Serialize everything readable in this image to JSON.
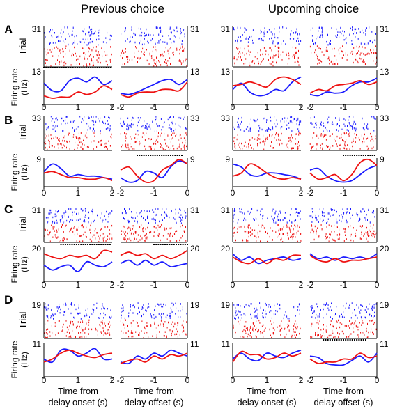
{
  "figure": {
    "column_titles": [
      "Previous choice",
      "Upcoming choice"
    ],
    "xlabels": {
      "onset": [
        "Time from",
        "delay onset (s)"
      ],
      "offset": [
        "Time from",
        "delay offset (s)"
      ]
    },
    "trial_label": "Trial",
    "rate_label": [
      "Firing rate",
      "(Hz)"
    ]
  },
  "colors": {
    "series_a": "#1a1aff",
    "series_b": "#ee1111",
    "marker": "#000000"
  },
  "chart_data": [
    {
      "type": "line",
      "panel": "A",
      "column": "Previous choice",
      "trials": 31,
      "ymax": 13,
      "onset": {
        "x": [
          0,
          0.25,
          0.5,
          0.75,
          1,
          1.25,
          1.5,
          1.75,
          2
        ],
        "series": [
          {
            "values": [
              8.5,
              5.5,
              5.5,
              9.5,
              10.5,
              9,
              11,
              8,
              9.5
            ]
          },
          {
            "values": [
              3.5,
              2.5,
              3,
              3,
              5,
              4,
              5,
              7.5,
              6
            ]
          }
        ],
        "marker": [
          0,
          2
        ]
      },
      "offset": {
        "x": [
          -2,
          -1.75,
          -1.5,
          -1.25,
          -1,
          -0.75,
          -0.5,
          -0.25,
          0
        ],
        "series": [
          {
            "values": [
              4.5,
              4,
              5,
              6.5,
              8,
              9.5,
              10,
              8,
              10
            ]
          },
          {
            "values": [
              4,
              3,
              4.5,
              5,
              5,
              6,
              6,
              5.5,
              9
            ]
          }
        ],
        "marker": null
      }
    },
    {
      "type": "line",
      "panel": "A",
      "column": "Upcoming choice",
      "trials": 31,
      "ymax": 13,
      "onset": {
        "x": [
          0,
          0.25,
          0.5,
          0.75,
          1,
          1.25,
          1.5,
          1.75,
          2
        ],
        "series": [
          {
            "values": [
              6,
              8.5,
              5,
              3.5,
              4,
              6,
              5.5,
              9,
              11
            ]
          },
          {
            "values": [
              7.5,
              8,
              9,
              8,
              7,
              10,
              11,
              10,
              8
            ]
          }
        ],
        "marker": null
      },
      "offset": {
        "x": [
          -2,
          -1.75,
          -1.5,
          -1.25,
          -1,
          -0.75,
          -0.5,
          -0.25,
          0
        ],
        "series": [
          {
            "values": [
              4,
              3.5,
              5,
              4.5,
              5,
              7.5,
              9,
              9,
              10.5
            ]
          },
          {
            "values": [
              4.5,
              6,
              5.5,
              7.5,
              8,
              8.5,
              9.5,
              8,
              9
            ]
          }
        ],
        "marker": null
      }
    },
    {
      "type": "line",
      "panel": "B",
      "column": "Previous choice",
      "trials": 33,
      "ymax": 9,
      "onset": {
        "x": [
          0,
          0.25,
          0.5,
          0.75,
          1,
          1.25,
          1.5,
          1.75,
          2
        ],
        "series": [
          {
            "values": [
              5,
              7.5,
              6,
              3.5,
              4,
              3.5,
              3.5,
              3,
              2.5
            ]
          },
          {
            "values": [
              4.5,
              5,
              4,
              3,
              3,
              2.5,
              2.5,
              3,
              2
            ]
          }
        ],
        "marker": null
      },
      "offset": {
        "x": [
          -2,
          -1.75,
          -1.5,
          -1.25,
          -1,
          -0.75,
          -0.5,
          -0.25,
          0
        ],
        "series": [
          {
            "values": [
              3,
              1.5,
              2,
              5,
              4.5,
              3,
              6.5,
              8.5,
              7.5
            ]
          },
          {
            "values": [
              5.5,
              6.5,
              3.5,
              1.5,
              2,
              5.5,
              7,
              9,
              7.5
            ]
          }
        ],
        "marker": [
          -1.5,
          -0.15
        ]
      }
    },
    {
      "type": "line",
      "panel": "B",
      "column": "Upcoming choice",
      "trials": 33,
      "ymax": 9,
      "onset": {
        "x": [
          0,
          0.25,
          0.5,
          0.75,
          1,
          1.25,
          1.5,
          1.75,
          2
        ],
        "series": [
          {
            "values": [
              7.5,
              6.5,
              4,
              3.5,
              4.5,
              4.5,
              4,
              3.5,
              2.5
            ]
          },
          {
            "values": [
              3.5,
              4.5,
              7.5,
              6.5,
              4.5,
              3,
              2.5,
              3,
              2.5
            ]
          }
        ],
        "marker": null
      },
      "offset": {
        "x": [
          -2,
          -1.75,
          -1.5,
          -1.25,
          -1,
          -0.75,
          -0.5,
          -0.25,
          0
        ],
        "series": [
          {
            "values": [
              5.5,
              6,
              3.5,
              2,
              1.5,
              2,
              4,
              6,
              7
            ]
          },
          {
            "values": [
              4.5,
              2.5,
              3,
              4,
              2,
              4,
              8,
              9,
              7
            ]
          }
        ],
        "marker": [
          -1,
          -0.05
        ]
      }
    },
    {
      "type": "line",
      "panel": "C",
      "column": "Previous choice",
      "trials": 31,
      "ymax": 20,
      "onset": {
        "x": [
          0,
          0.25,
          0.5,
          0.75,
          1,
          1.25,
          1.5,
          1.75,
          2
        ],
        "series": [
          {
            "values": [
              10,
              7,
              9,
              10,
              6,
              12,
              10,
              9,
              12
            ]
          },
          {
            "values": [
              17,
              15,
              14,
              16,
              15,
              16,
              14,
              19,
              18
            ]
          }
        ],
        "marker": [
          0.5,
          2
        ]
      },
      "offset": {
        "x": [
          -2,
          -1.75,
          -1.5,
          -1.25,
          -1,
          -0.75,
          -0.5,
          -0.25,
          0
        ],
        "series": [
          {
            "values": [
              11,
              13,
              10,
              13,
              10,
              12,
              9,
              10,
              11
            ]
          },
          {
            "values": [
              16,
              18,
              16,
              17,
              14,
              16,
              14,
              16,
              19
            ]
          }
        ],
        "marker": [
          -1,
          0
        ]
      }
    },
    {
      "type": "line",
      "panel": "C",
      "column": "Upcoming choice",
      "trials": 31,
      "ymax": 20,
      "onset": {
        "x": [
          0,
          0.25,
          0.5,
          0.75,
          1,
          1.25,
          1.5,
          1.75,
          2
        ],
        "series": [
          {
            "values": [
              17,
              13,
              15,
              11,
              13,
              14,
              15,
              13,
              14
            ]
          },
          {
            "values": [
              15,
              12,
              11,
              14,
              11,
              14,
              13,
              16,
              16
            ]
          }
        ],
        "marker": null
      },
      "offset": {
        "x": [
          -2,
          -1.75,
          -1.5,
          -1.25,
          -1,
          -0.75,
          -0.5,
          -0.25,
          0
        ],
        "series": [
          {
            "values": [
              17,
              14,
              15,
              13,
              15,
              14,
              15,
              14,
              17
            ]
          },
          {
            "values": [
              16,
              13,
              12,
              14,
              12,
              13,
              13,
              14,
              15
            ]
          }
        ],
        "marker": null
      }
    },
    {
      "type": "line",
      "panel": "D",
      "column": "Previous choice",
      "trials": 19,
      "ymax": 11,
      "onset": {
        "x": [
          0,
          0.25,
          0.5,
          0.75,
          1,
          1.25,
          1.5,
          1.75,
          2
        ],
        "series": [
          {
            "values": [
              6,
              5,
              9,
              9,
              7,
              8,
              9.5,
              6,
              6
            ]
          },
          {
            "values": [
              5,
              6,
              8,
              9,
              8,
              7,
              6.5,
              7.5,
              8
            ]
          }
        ],
        "marker": null
      },
      "offset": {
        "x": [
          -2,
          -1.75,
          -1.5,
          -1.25,
          -1,
          -0.75,
          -0.5,
          -0.25,
          0
        ],
        "series": [
          {
            "values": [
              5,
              4.5,
              7,
              6,
              8,
              7,
              9,
              8,
              7
            ]
          },
          {
            "values": [
              4.5,
              5.5,
              6,
              5,
              7,
              6,
              7.5,
              7,
              8
            ]
          }
        ],
        "marker": null
      }
    },
    {
      "type": "line",
      "panel": "D",
      "column": "Upcoming choice",
      "trials": 19,
      "ymax": 11,
      "onset": {
        "x": [
          0,
          0.25,
          0.5,
          0.75,
          1,
          1.25,
          1.5,
          1.75,
          2
        ],
        "series": [
          {
            "values": [
              6,
              8,
              6,
              5.5,
              8,
              7,
              6.5,
              8,
              9
            ]
          },
          {
            "values": [
              5,
              8.5,
              7.5,
              7.5,
              6,
              6.5,
              8,
              7,
              8
            ]
          }
        ],
        "marker": null
      },
      "offset": {
        "x": [
          -2,
          -1.75,
          -1.5,
          -1.25,
          -1,
          -0.75,
          -0.5,
          -0.25,
          0
        ],
        "series": [
          {
            "values": [
              7,
              6.5,
              4.5,
              4,
              4,
              5.5,
              7,
              5,
              8
            ]
          },
          {
            "values": [
              6,
              4.5,
              5,
              5,
              6,
              6,
              8,
              6.5,
              7
            ]
          }
        ],
        "marker": [
          -1.6,
          -0.3
        ]
      }
    }
  ]
}
